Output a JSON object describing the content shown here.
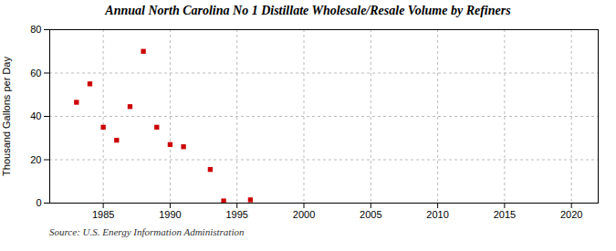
{
  "chart_data": {
    "type": "scatter",
    "title": "Annual North Carolina No 1 Distillate Wholesale/Resale Volume by Refiners",
    "ylabel": "Thousand Gallons per Day",
    "source": "Source: U.S. Energy Information Administration",
    "x": [
      1983,
      1984,
      1985,
      1986,
      1987,
      1988,
      1989,
      1990,
      1991,
      1993,
      1994,
      1996
    ],
    "values": [
      46.5,
      55.0,
      35.0,
      29.0,
      44.5,
      70.0,
      35.0,
      27.0,
      26.0,
      15.5,
      1.0,
      1.5
    ],
    "color": "#cc0000",
    "marker": "square",
    "xlim": [
      1981,
      2022
    ],
    "ylim": [
      0,
      80
    ],
    "xticks": [
      1985,
      1990,
      1995,
      2000,
      2005,
      2010,
      2015,
      2020
    ],
    "yticks": [
      0,
      20,
      40,
      60,
      80
    ],
    "grid": true
  }
}
